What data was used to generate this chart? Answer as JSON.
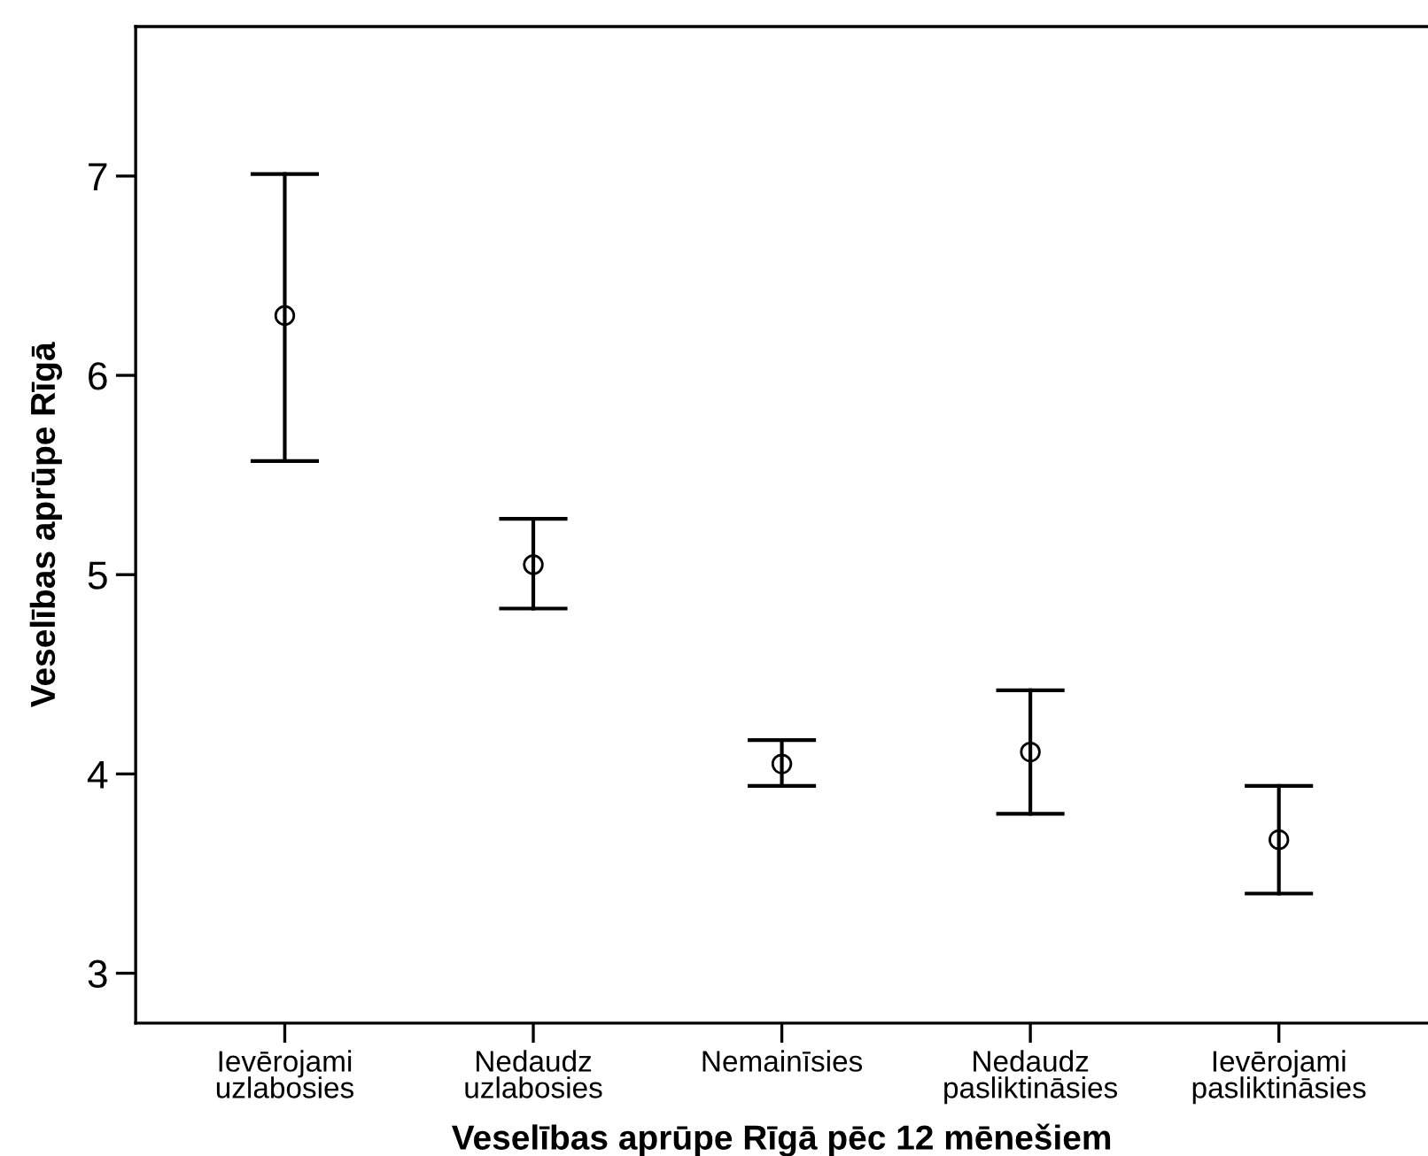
{
  "chart_data": {
    "type": "scatter",
    "xlabel": "Veselības aprūpe Rīgā pēc 12 mēnešiem",
    "ylabel": "Veselības aprūpe Rīgā",
    "categories": [
      "Ievērojami\nuzlabosies",
      "Nedaudz\nuzlabosies",
      "Nemainīsies",
      "Nedaudz\npasliktināsies",
      "Ievērojami\npasliktināsies"
    ],
    "series": [
      {
        "color": "#000000",
        "values": [
          6.3,
          5.05,
          4.05,
          4.11,
          3.67
        ],
        "errors": [
          [
            5.57,
            7.01
          ],
          [
            4.83,
            5.28
          ],
          [
            3.94,
            4.17
          ],
          [
            3.8,
            4.42
          ],
          [
            3.4,
            3.94
          ]
        ]
      }
    ],
    "ylim": [
      2.75,
      7.75
    ],
    "yticks": [
      3,
      4,
      5,
      6,
      7
    ],
    "marker": "circle",
    "grid": false,
    "legend": false
  }
}
